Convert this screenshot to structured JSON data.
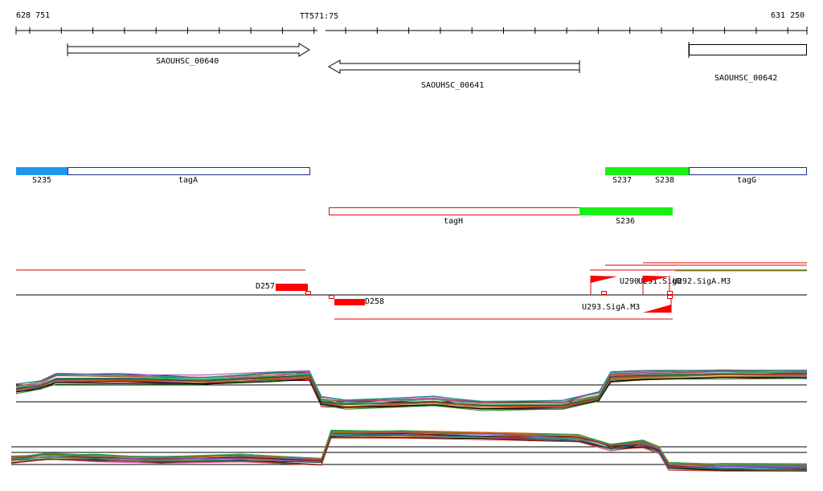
{
  "ruler": {
    "start_label": "628 751",
    "center_label": "TT571:75",
    "end_label": "631 250"
  },
  "genes": [
    {
      "label": "SAOUHSC_00640",
      "strand": "+"
    },
    {
      "label": "SAOUHSC_00641",
      "strand": "-"
    },
    {
      "label": "SAOUHSC_00642",
      "strand": "+"
    }
  ],
  "features": {
    "s235": "S235",
    "taga": "tagA",
    "s237": "S237",
    "s238": "S238",
    "tagg": "tagG",
    "tagh": "tagH",
    "s236": "S236"
  },
  "annotations": {
    "d257": "D257",
    "d258": "D258",
    "u290": "U290",
    "u291_overlap": "U291.SigB",
    "u292": "U292.SigA.M3",
    "u293": "U293.SigA.M3"
  },
  "colors": {
    "feature_blue": "#1e96f0",
    "feature_green": "#18f018",
    "feature_red": "#ff0000",
    "outline_navy": "#1c2c8c",
    "line_black": "#000000"
  },
  "tracks": {
    "count": 2,
    "description_visible": false
  }
}
